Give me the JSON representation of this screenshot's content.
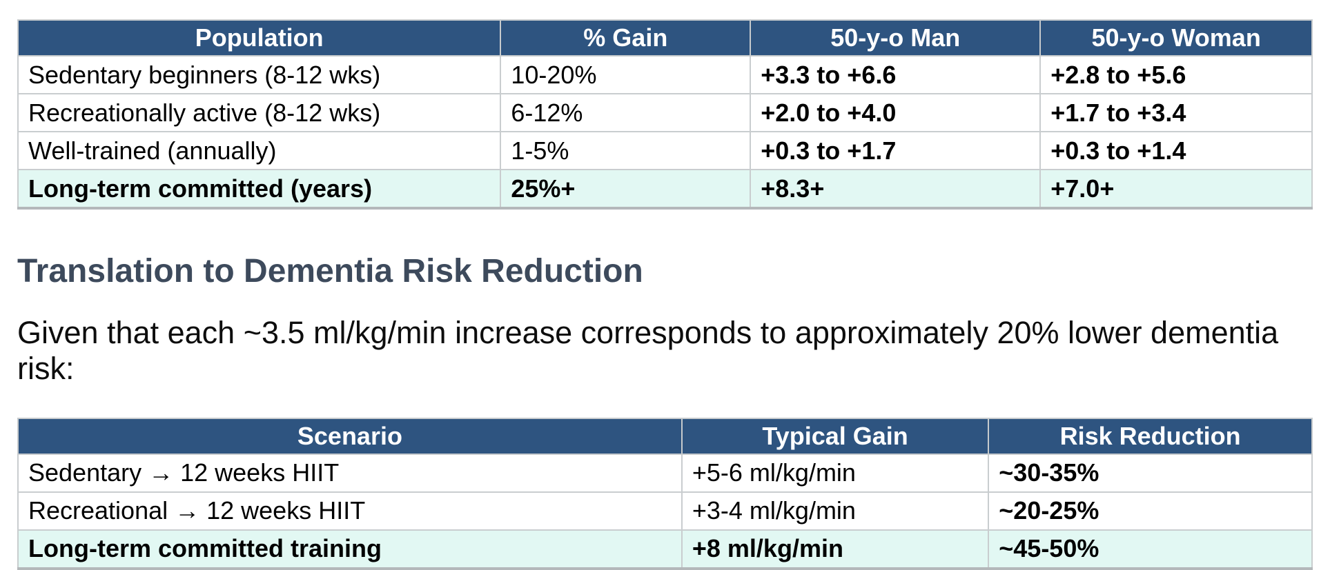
{
  "colors": {
    "table_header_bg": "#2e5480",
    "table_header_text": "#ffffff",
    "highlight_row_bg": "#e2f8f3",
    "heading_text": "#3d4a5c",
    "table_border": "#c9cdcf",
    "body_text": "#000000",
    "page_bg": "#ffffff"
  },
  "vo2max_table": {
    "headers": [
      "Population",
      "% Gain",
      "50-y-o Man",
      "50-y-o Woman"
    ],
    "bold_columns": [
      2,
      3
    ],
    "rows": [
      {
        "highlight": false,
        "cells": [
          "Sedentary beginners (8-12 wks)",
          "10-20%",
          "+3.3 to +6.6",
          "+2.8 to +5.6"
        ]
      },
      {
        "highlight": false,
        "cells": [
          "Recreationally active (8-12 wks)",
          "6-12%",
          "+2.0 to +4.0",
          "+1.7 to +3.4"
        ]
      },
      {
        "highlight": false,
        "cells": [
          "Well-trained (annually)",
          "1-5%",
          "+0.3 to +1.7",
          "+0.3 to +1.4"
        ]
      },
      {
        "highlight": true,
        "cells": [
          "Long-term committed (years)",
          "25%+",
          "+8.3+",
          "+7.0+"
        ]
      }
    ]
  },
  "section": {
    "heading": "Translation to Dementia Risk Reduction",
    "paragraph": "Given that each ~3.5 ml/kg/min increase corresponds to approximately 20% lower dementia risk:"
  },
  "risk_table": {
    "headers": [
      "Scenario",
      "Typical Gain",
      "Risk Reduction"
    ],
    "bold_columns": [
      2
    ],
    "rows": [
      {
        "highlight": false,
        "cells": [
          "Sedentary → 12 weeks HIIT",
          "+5-6 ml/kg/min",
          "~30-35%"
        ]
      },
      {
        "highlight": false,
        "cells": [
          "Recreational → 12 weeks HIIT",
          "+3-4 ml/kg/min",
          "~20-25%"
        ]
      },
      {
        "highlight": true,
        "cells": [
          "Long-term committed training",
          "+8 ml/kg/min",
          "~45-50%"
        ]
      }
    ]
  }
}
